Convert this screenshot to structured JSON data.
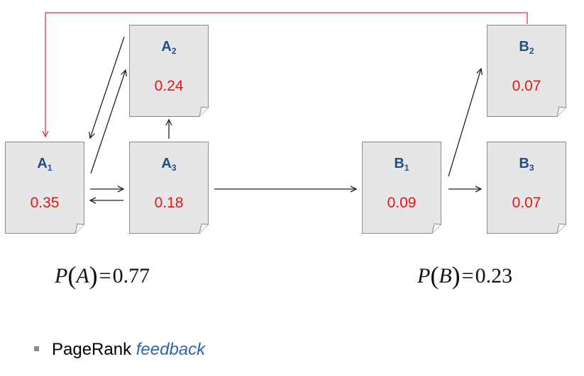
{
  "nodes": {
    "A1": {
      "name": "A",
      "sub": "1",
      "value": "0.35"
    },
    "A2": {
      "name": "A",
      "sub": "2",
      "value": "0.24"
    },
    "A3": {
      "name": "A",
      "sub": "3",
      "value": "0.18"
    },
    "B1": {
      "name": "B",
      "sub": "1",
      "value": "0.09"
    },
    "B2": {
      "name": "B",
      "sub": "2",
      "value": "0.07"
    },
    "B3": {
      "name": "B",
      "sub": "3",
      "value": "0.07"
    }
  },
  "formulas": {
    "pa": {
      "func": "P",
      "var": "A",
      "eq": "=",
      "value": "0.77"
    },
    "pb": {
      "func": "P",
      "var": "B",
      "eq": "=",
      "value": "0.23"
    }
  },
  "bullet": {
    "text": "PageRank",
    "accent": "feedback"
  },
  "colors": {
    "label": "#1f4e8c",
    "value": "#ee1111",
    "feedback_edge": "#e53333",
    "accent": "#2e62b3"
  }
}
